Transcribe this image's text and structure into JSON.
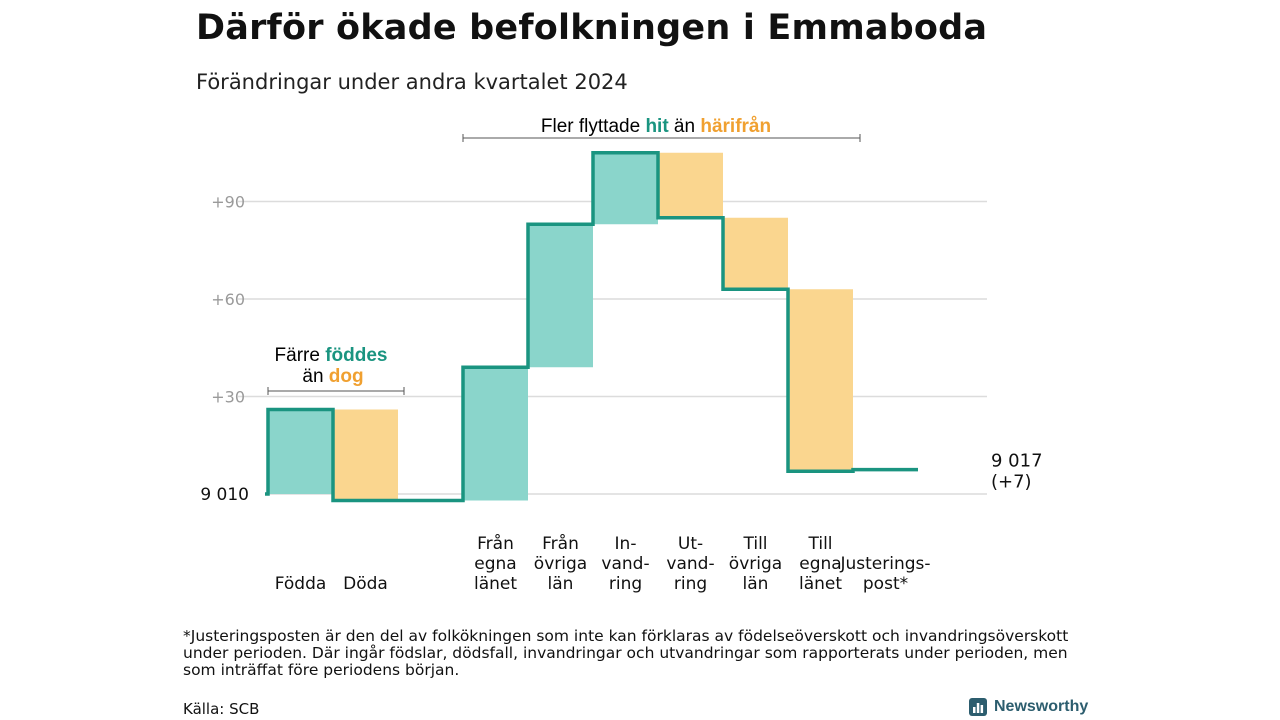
{
  "header": {
    "title": "Därför ökade befolkningen i Emmaboda",
    "subtitle": "Förändringar under andra kvartalet 2024"
  },
  "chart_data": {
    "type": "waterfall",
    "start_value": 9010,
    "start_label": "9 010",
    "end_label": "9 017",
    "end_change_label": "(+7)",
    "yticks": [
      30,
      60,
      90
    ],
    "ytick_labels": [
      "+30",
      "+60",
      "+90"
    ],
    "ylim": [
      -3,
      110
    ],
    "steps": [
      {
        "label": "Födda",
        "value": 26,
        "kind": "in"
      },
      {
        "label": "Döda",
        "value": -28,
        "kind": "out"
      },
      {
        "label": "",
        "value": 0,
        "kind": "none"
      },
      {
        "label": "Från egna länet",
        "value": 41,
        "kind": "in"
      },
      {
        "label": "Från övriga län",
        "value": 44,
        "kind": "in"
      },
      {
        "label": "In- vand- ring",
        "value": 22,
        "kind": "in"
      },
      {
        "label": "Ut- vand- ring",
        "value": -20,
        "kind": "out"
      },
      {
        "label": "Till övriga län",
        "value": -22,
        "kind": "out"
      },
      {
        "label": "Till egna länet",
        "value": -56,
        "kind": "out"
      },
      {
        "label": "Justerings- post*",
        "value": 0.5,
        "kind": "adjust"
      }
    ],
    "category_lines": [
      [
        "Födda"
      ],
      [
        "Döda"
      ],
      [],
      [
        "Från",
        "egna",
        "länet"
      ],
      [
        "Från",
        "övriga",
        "län"
      ],
      [
        "In-",
        "vand-",
        "ring"
      ],
      [
        "Ut-",
        "vand-",
        "ring"
      ],
      [
        "Till",
        "övriga",
        "län"
      ],
      [
        "Till",
        "egna",
        "länet"
      ],
      [
        "Justerings-",
        "post*"
      ]
    ],
    "annotations": {
      "births": {
        "line1_a": "Färre ",
        "line1_b": "föddes",
        "line2_a": "än ",
        "line2_b": "dog"
      },
      "moves": {
        "a": "Fler flyttade ",
        "b": "hit",
        "c": " än ",
        "d": "härifrån"
      }
    },
    "colors": {
      "in_fill": "#8ad5cb",
      "out_fill": "#fad68f",
      "line": "#1a9480",
      "grid": "#dcdcdc",
      "tick_text": "#9a9a9a",
      "accent_teal": "#1a9480",
      "accent_orange": "#f0a030"
    }
  },
  "footnote": "*Justeringsposten är den del av folkökningen som inte kan förklaras av födelseöverskott och invandringsöverskott under perioden. Där ingår födslar, dödsfall, invandringar och utvandringar som rapporterats under perioden, men som inträffat före periodens början.",
  "source": "Källa: SCB",
  "logo": {
    "name": "Newsworthy",
    "icon": "chart-logo-icon"
  }
}
